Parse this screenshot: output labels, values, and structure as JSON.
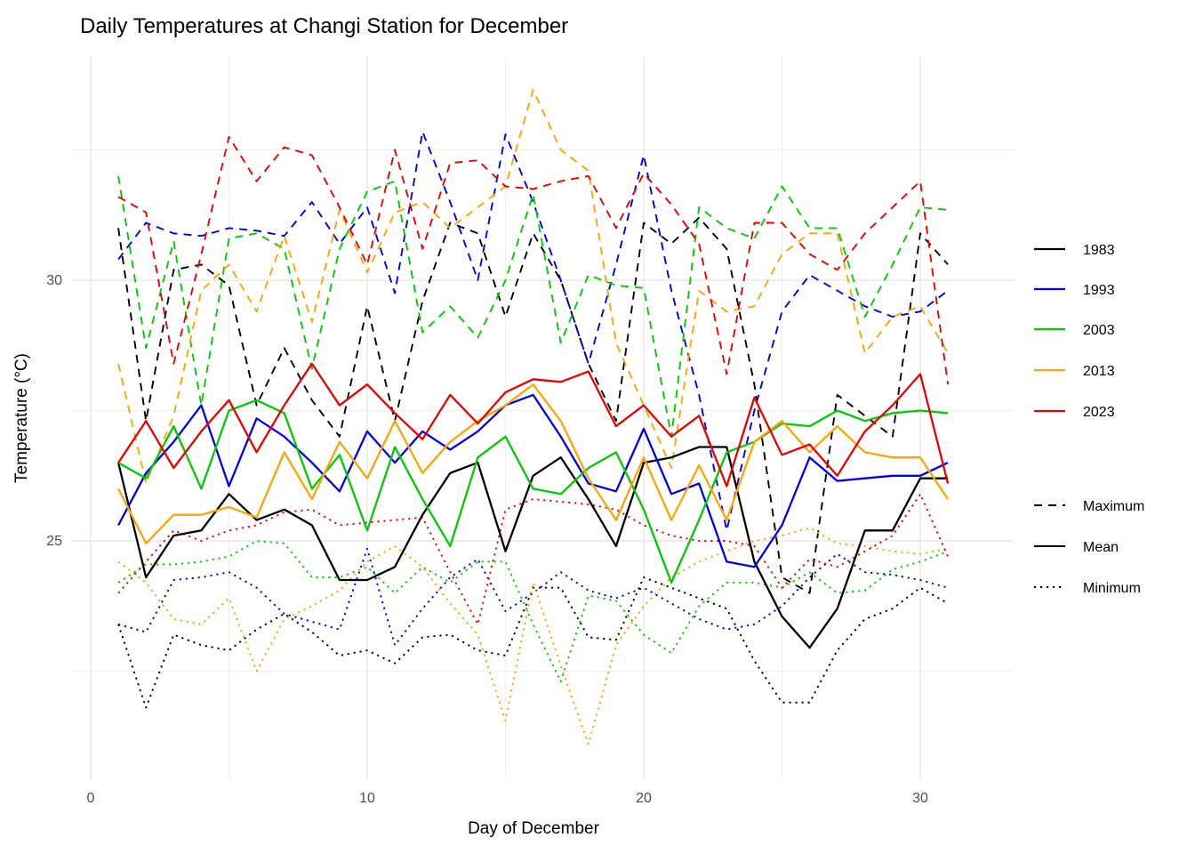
{
  "title": "Daily Temperatures at Changi Station for December",
  "x_axis": {
    "label": "Day of December",
    "ticks": [
      0,
      10,
      20,
      30
    ],
    "minor_ticks": [
      5,
      15,
      25
    ]
  },
  "y_axis": {
    "label": "Temperature (°C)",
    "ticks": [
      25,
      30
    ],
    "minor_ticks": [
      22.5,
      27.5,
      32.5
    ]
  },
  "legend": {
    "years": [
      {
        "label": "1983",
        "color": "#000000"
      },
      {
        "label": "1993",
        "color": "#0000EE"
      },
      {
        "label": "2003",
        "color": "#00CC00"
      },
      {
        "label": "2013",
        "color": "#FFA500"
      },
      {
        "label": "2023",
        "color": "#EE0000"
      }
    ],
    "stats": [
      {
        "label": "Maximum",
        "linetype": "dashed"
      },
      {
        "label": "Mean",
        "linetype": "solid"
      },
      {
        "label": "Minimum",
        "linetype": "dotted"
      }
    ]
  },
  "chart_data": {
    "type": "line",
    "title": "Daily Temperatures at Changi Station for December",
    "xlabel": "Day of December",
    "ylabel": "Temperature (°C)",
    "x": [
      1,
      2,
      3,
      4,
      5,
      6,
      7,
      8,
      9,
      10,
      11,
      12,
      13,
      14,
      15,
      16,
      17,
      18,
      19,
      20,
      21,
      22,
      23,
      24,
      25,
      26,
      27,
      28,
      29,
      30,
      31
    ],
    "xlim": [
      -0.7,
      33.4
    ],
    "ylim": [
      20.4,
      34.4
    ],
    "grid": true,
    "legend_position": "right",
    "series": [
      {
        "year": "1983",
        "stat": "Maximum",
        "color": "#000000",
        "linetype": "dashed",
        "values": [
          31.0,
          27.3,
          30.2,
          30.3,
          29.9,
          27.6,
          28.7,
          27.7,
          27.0,
          29.5,
          27.3,
          29.6,
          31.1,
          30.9,
          29.3,
          30.9,
          30.0,
          28.4,
          27.3,
          31.1,
          30.7,
          31.2,
          30.6,
          28.0,
          24.3,
          24.0,
          27.8,
          27.4,
          27.0,
          30.9,
          30.3
        ]
      },
      {
        "year": "1993",
        "stat": "Maximum",
        "color": "#0000EE",
        "linetype": "dashed",
        "values": [
          30.4,
          31.1,
          30.9,
          30.85,
          31.0,
          30.95,
          30.85,
          31.5,
          30.7,
          31.4,
          29.75,
          32.85,
          31.5,
          30.0,
          32.8,
          31.5,
          30.0,
          28.4,
          30.3,
          32.4,
          29.8,
          27.8,
          25.2,
          27.5,
          29.4,
          30.1,
          29.8,
          29.5,
          29.3,
          29.4,
          29.8
        ]
      },
      {
        "year": "2003",
        "stat": "Maximum",
        "color": "#00CC00",
        "linetype": "dashed",
        "values": [
          32.0,
          28.7,
          30.75,
          27.6,
          30.8,
          30.9,
          30.6,
          28.3,
          30.6,
          31.7,
          31.9,
          29.0,
          29.5,
          28.9,
          30.0,
          31.65,
          28.8,
          30.1,
          29.9,
          29.85,
          27.0,
          31.4,
          31.0,
          30.8,
          31.8,
          31.0,
          31.0,
          29.3,
          30.3,
          31.4,
          31.35
        ]
      },
      {
        "year": "2013",
        "stat": "Maximum",
        "color": "#FFA500",
        "linetype": "dashed",
        "values": [
          28.4,
          26.1,
          27.4,
          29.8,
          30.3,
          29.4,
          30.85,
          29.2,
          31.35,
          30.15,
          31.3,
          31.5,
          31.0,
          31.4,
          31.8,
          33.65,
          32.5,
          32.1,
          28.8,
          27.6,
          26.4,
          29.8,
          29.4,
          29.5,
          30.5,
          30.9,
          30.9,
          28.6,
          29.3,
          29.5,
          28.6
        ]
      },
      {
        "year": "2023",
        "stat": "Maximum",
        "color": "#EE0000",
        "linetype": "dashed",
        "values": [
          31.6,
          31.3,
          28.4,
          30.5,
          32.75,
          31.9,
          32.55,
          32.4,
          31.4,
          30.3,
          32.5,
          30.6,
          32.25,
          32.3,
          31.8,
          31.75,
          31.9,
          32.0,
          31.0,
          32.05,
          31.45,
          30.7,
          28.2,
          31.1,
          31.1,
          30.5,
          30.2,
          30.9,
          31.4,
          31.9,
          28.0
        ]
      },
      {
        "year": "1983",
        "stat": "Mean",
        "color": "#000000",
        "linetype": "solid",
        "values": [
          26.5,
          24.3,
          25.1,
          25.2,
          25.9,
          25.4,
          25.6,
          25.3,
          24.25,
          24.25,
          24.5,
          25.5,
          26.3,
          26.5,
          24.8,
          26.25,
          26.6,
          25.8,
          24.9,
          26.5,
          26.6,
          26.8,
          26.8,
          24.6,
          23.55,
          22.95,
          23.7,
          25.2,
          25.2,
          26.2,
          26.2
        ]
      },
      {
        "year": "1993",
        "stat": "Mean",
        "color": "#0000EE",
        "linetype": "solid",
        "values": [
          25.3,
          26.3,
          26.9,
          27.6,
          26.05,
          27.35,
          27.0,
          26.5,
          25.95,
          27.1,
          26.5,
          27.1,
          26.75,
          27.1,
          27.6,
          27.8,
          27.0,
          26.1,
          25.95,
          27.15,
          25.9,
          26.1,
          24.6,
          24.5,
          25.3,
          26.6,
          26.15,
          26.2,
          26.25,
          26.25,
          26.5
        ]
      },
      {
        "year": "2003",
        "stat": "Mean",
        "color": "#00CC00",
        "linetype": "solid",
        "values": [
          26.5,
          26.2,
          27.2,
          26.0,
          27.5,
          27.7,
          27.45,
          26.0,
          26.65,
          25.2,
          26.8,
          25.8,
          24.9,
          26.6,
          27.0,
          26.0,
          25.9,
          26.4,
          26.7,
          25.6,
          24.2,
          25.4,
          26.7,
          26.9,
          27.25,
          27.2,
          27.5,
          27.3,
          27.45,
          27.5,
          27.45
        ]
      },
      {
        "year": "2013",
        "stat": "Mean",
        "color": "#FFA500",
        "linetype": "solid",
        "values": [
          26.0,
          24.95,
          25.5,
          25.5,
          25.65,
          25.45,
          26.7,
          25.8,
          26.9,
          26.2,
          27.3,
          26.3,
          26.9,
          27.3,
          27.6,
          28.0,
          27.3,
          26.2,
          25.4,
          26.6,
          25.4,
          26.45,
          25.4,
          26.9,
          27.3,
          26.7,
          27.2,
          26.7,
          26.6,
          26.6,
          25.8
        ]
      },
      {
        "year": "2023",
        "stat": "Mean",
        "color": "#EE0000",
        "linetype": "solid",
        "values": [
          26.5,
          27.3,
          26.4,
          27.1,
          27.7,
          26.7,
          27.6,
          28.4,
          27.6,
          28.0,
          27.45,
          26.95,
          27.8,
          27.25,
          27.85,
          28.1,
          28.05,
          28.25,
          27.2,
          27.6,
          27.0,
          27.4,
          26.05,
          27.75,
          26.65,
          26.85,
          26.25,
          27.1,
          27.6,
          28.2,
          26.1
        ]
      },
      {
        "year": "1983",
        "stat": "Minimum",
        "color": "#000000",
        "linetype": "dotted",
        "values": [
          23.4,
          21.8,
          23.2,
          23.0,
          22.9,
          23.3,
          23.6,
          23.25,
          22.8,
          22.9,
          22.65,
          23.15,
          23.2,
          22.9,
          22.8,
          24.1,
          24.1,
          23.15,
          23.1,
          24.3,
          24.1,
          23.9,
          23.7,
          22.7,
          21.9,
          21.9,
          22.9,
          23.5,
          23.7,
          24.1,
          23.8
        ]
      },
      {
        "year": "1993",
        "stat": "Minimum",
        "color": "#0000EE",
        "linetype": "dotted",
        "values": [
          23.4,
          23.25,
          24.25,
          24.3,
          24.4,
          24.1,
          23.6,
          23.45,
          23.3,
          24.85,
          23.0,
          23.7,
          24.3,
          24.65,
          23.65,
          24.0,
          24.4,
          24.05,
          23.9,
          24.1,
          23.8,
          23.5,
          23.3,
          23.4,
          23.75,
          24.3,
          24.75,
          24.4,
          24.35,
          24.25,
          24.1
        ]
      },
      {
        "year": "2003",
        "stat": "Minimum",
        "color": "#00CC00",
        "linetype": "dotted",
        "values": [
          24.2,
          24.55,
          24.55,
          24.6,
          24.7,
          25.0,
          24.95,
          24.3,
          24.3,
          24.5,
          24.0,
          24.5,
          24.2,
          24.6,
          24.6,
          23.4,
          22.3,
          23.95,
          23.85,
          23.2,
          22.85,
          23.75,
          24.2,
          24.2,
          24.1,
          24.4,
          24.0,
          24.05,
          24.45,
          24.6,
          24.8
        ]
      },
      {
        "year": "2013",
        "stat": "Minimum",
        "color": "#FFA500",
        "linetype": "dotted",
        "values": [
          24.6,
          24.2,
          23.5,
          23.4,
          23.9,
          22.5,
          23.5,
          23.75,
          24.05,
          24.6,
          24.9,
          24.5,
          23.8,
          23.2,
          21.55,
          24.2,
          22.6,
          21.1,
          23.0,
          23.75,
          24.3,
          24.6,
          24.8,
          25.0,
          25.1,
          25.25,
          24.95,
          24.9,
          24.8,
          24.75,
          24.85
        ]
      },
      {
        "year": "2023",
        "stat": "Minimum",
        "color": "#EE0000",
        "linetype": "dotted",
        "values": [
          24.0,
          24.6,
          25.2,
          25.0,
          25.2,
          25.3,
          25.55,
          25.6,
          25.3,
          25.35,
          25.4,
          25.45,
          24.4,
          23.4,
          25.6,
          25.8,
          25.75,
          25.7,
          25.6,
          25.3,
          25.1,
          25.0,
          25.0,
          24.9,
          24.1,
          24.65,
          24.5,
          24.8,
          25.1,
          25.9,
          24.7
        ]
      }
    ]
  },
  "style": {
    "background": "#FFFFFF",
    "grid_color": "#E8E8E8",
    "grid_minor_color": "#F0F0F0",
    "tick_label_color": "#4D4D4D"
  }
}
